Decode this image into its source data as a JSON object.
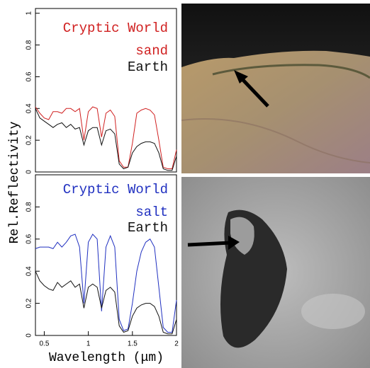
{
  "chart_data": [
    {
      "type": "line",
      "title": "Cryptic World",
      "ylabel": "Rel.Reflectivity",
      "x": [
        0.4,
        0.45,
        0.5,
        0.55,
        0.6,
        0.65,
        0.7,
        0.75,
        0.8,
        0.85,
        0.9,
        0.95,
        1.0,
        1.05,
        1.1,
        1.15,
        1.2,
        1.25,
        1.3,
        1.35,
        1.4,
        1.45,
        1.5,
        1.55,
        1.6,
        1.65,
        1.7,
        1.75,
        1.8,
        1.85,
        1.9,
        1.95,
        2.0
      ],
      "xlim": [
        0.4,
        2.0
      ],
      "ylim": [
        0,
        1.03
      ],
      "yticks": [
        0,
        0.2,
        0.4,
        0.6,
        0.8,
        1
      ],
      "series": [
        {
          "name": "sand",
          "color": "#d02020",
          "values": [
            0.41,
            0.37,
            0.34,
            0.33,
            0.38,
            0.38,
            0.37,
            0.4,
            0.4,
            0.38,
            0.4,
            0.2,
            0.38,
            0.41,
            0.4,
            0.22,
            0.37,
            0.39,
            0.35,
            0.07,
            0.03,
            0.03,
            0.18,
            0.37,
            0.39,
            0.4,
            0.39,
            0.36,
            0.2,
            0.03,
            0.02,
            0.02,
            0.14
          ]
        },
        {
          "name": "Earth",
          "color": "#111111",
          "values": [
            0.4,
            0.34,
            0.32,
            0.3,
            0.28,
            0.3,
            0.31,
            0.28,
            0.3,
            0.27,
            0.28,
            0.17,
            0.26,
            0.28,
            0.28,
            0.17,
            0.26,
            0.27,
            0.24,
            0.05,
            0.02,
            0.03,
            0.12,
            0.16,
            0.18,
            0.19,
            0.19,
            0.18,
            0.12,
            0.02,
            0.01,
            0.01,
            0.1
          ]
        }
      ]
    },
    {
      "type": "line",
      "title": "Cryptic World",
      "xlabel": "Wavelength (μm)",
      "x": [
        0.4,
        0.45,
        0.5,
        0.55,
        0.6,
        0.65,
        0.7,
        0.75,
        0.8,
        0.85,
        0.9,
        0.95,
        1.0,
        1.05,
        1.1,
        1.15,
        1.2,
        1.25,
        1.3,
        1.35,
        1.4,
        1.45,
        1.5,
        1.55,
        1.6,
        1.65,
        1.7,
        1.75,
        1.8,
        1.85,
        1.9,
        1.95,
        2.0
      ],
      "xlim": [
        0.4,
        2.0
      ],
      "xticks": [
        0.5,
        1,
        1.5,
        2
      ],
      "ylim": [
        0,
        1
      ],
      "yticks": [
        0,
        0.2,
        0.4,
        0.6,
        0.8
      ],
      "series": [
        {
          "name": "salt",
          "color": "#2030c0",
          "values": [
            0.54,
            0.55,
            0.55,
            0.55,
            0.54,
            0.58,
            0.55,
            0.58,
            0.62,
            0.63,
            0.55,
            0.2,
            0.58,
            0.63,
            0.6,
            0.15,
            0.55,
            0.62,
            0.55,
            0.1,
            0.03,
            0.04,
            0.2,
            0.4,
            0.52,
            0.58,
            0.6,
            0.55,
            0.3,
            0.05,
            0.02,
            0.02,
            0.22
          ]
        },
        {
          "name": "Earth",
          "color": "#111111",
          "values": [
            0.4,
            0.34,
            0.31,
            0.29,
            0.28,
            0.33,
            0.3,
            0.32,
            0.34,
            0.3,
            0.32,
            0.17,
            0.3,
            0.32,
            0.3,
            0.17,
            0.28,
            0.3,
            0.27,
            0.06,
            0.02,
            0.03,
            0.12,
            0.17,
            0.19,
            0.2,
            0.2,
            0.18,
            0.12,
            0.02,
            0.01,
            0.01,
            0.1
          ]
        }
      ]
    }
  ]
}
